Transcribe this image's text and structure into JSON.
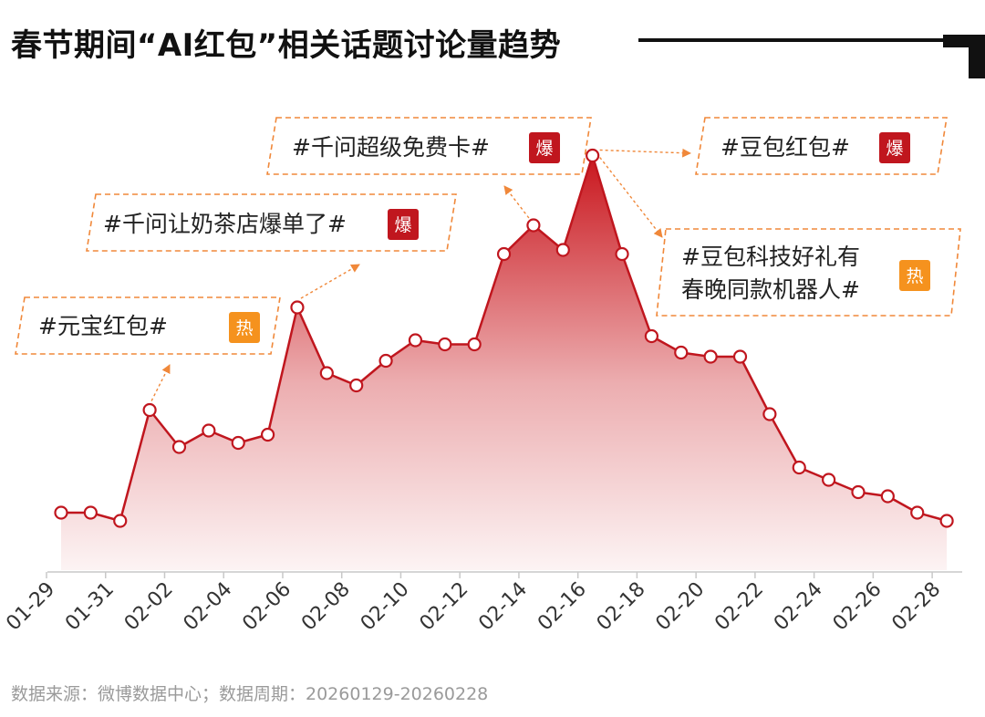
{
  "title": "春节期间“AI红包”相关话题讨论量趋势",
  "source": "数据来源：微博数据中心；数据周期：20260129-20260228",
  "colors": {
    "line": "#c0161e",
    "area_top": "#c9161d",
    "marker_fill": "#ffffff",
    "annotation_border": "#f0883a",
    "badge_explode": "#c0161e",
    "badge_hot": "#f5921e"
  },
  "chart_data": {
    "type": "area",
    "title": "春节期间“AI红包”相关话题讨论量趋势",
    "xlabel": "",
    "ylabel": "",
    "grid": false,
    "y_axis_shown": false,
    "x": [
      "01-29",
      "01-30",
      "01-31",
      "02-01",
      "02-02",
      "02-03",
      "02-04",
      "02-05",
      "02-06",
      "02-07",
      "02-08",
      "02-09",
      "02-10",
      "02-11",
      "02-12",
      "02-13",
      "02-14",
      "02-15",
      "02-16",
      "02-17",
      "02-18",
      "02-19",
      "02-20",
      "02-21",
      "02-22",
      "02-23",
      "02-24",
      "02-25",
      "02-26",
      "02-27",
      "02-28"
    ],
    "x_tick_labels": [
      "01-29",
      "01-31",
      "02-02",
      "02-04",
      "02-06",
      "02-08",
      "02-10",
      "02-12",
      "02-14",
      "02-16",
      "02-18",
      "02-20",
      "02-22",
      "02-24",
      "02-26",
      "02-28"
    ],
    "values": [
      14,
      14,
      12,
      39,
      30,
      34,
      31,
      33,
      64,
      48,
      45,
      51,
      56,
      55,
      55,
      77,
      84,
      78,
      101,
      77,
      57,
      53,
      52,
      52,
      38,
      25,
      22,
      19,
      18,
      14,
      12
    ],
    "ylim": [
      0,
      110
    ],
    "annotations": [
      {
        "text": "#元宝红包#",
        "badge": "热",
        "badge_type": "hot",
        "x": "02-01"
      },
      {
        "text": "#千问让奶茶店爆单了#",
        "badge": "爆",
        "badge_type": "explode",
        "x": "02-06"
      },
      {
        "text": "#千问超级免费卡#",
        "badge": "爆",
        "badge_type": "explode",
        "x": "02-14"
      },
      {
        "text": "#豆包红包#",
        "badge": "爆",
        "badge_type": "explode",
        "x": "02-16"
      },
      {
        "text_lines": [
          "#豆包科技好礼有",
          "春晚同款机器人#"
        ],
        "badge": "热",
        "badge_type": "hot",
        "x": "02-16"
      }
    ]
  }
}
